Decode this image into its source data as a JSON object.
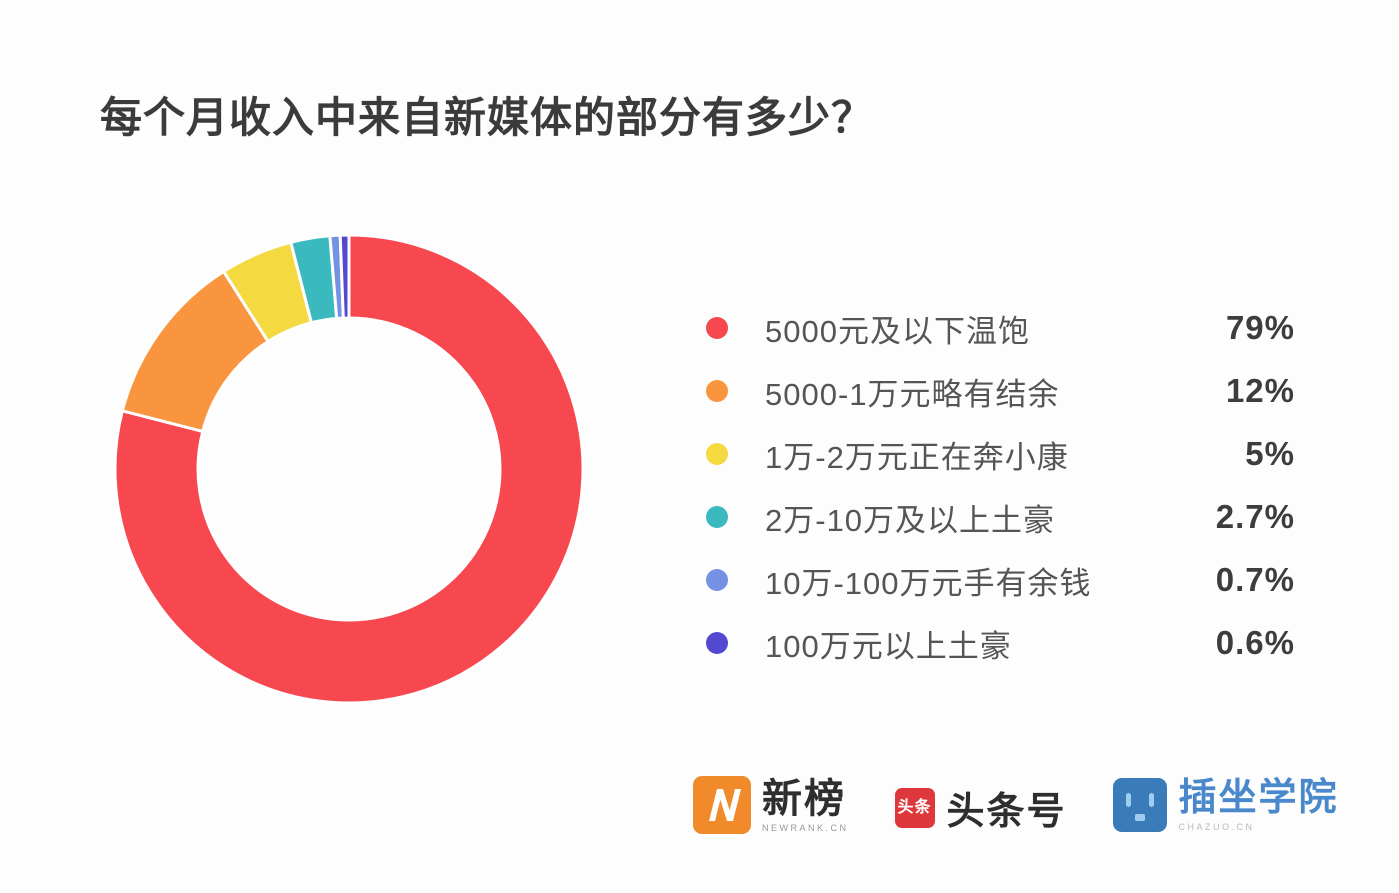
{
  "title": "每个月收入中来自新媒体的部分有多少？",
  "chart_data": {
    "type": "pie",
    "variant": "donut",
    "title": "每个月收入中来自新媒体的部分有多少？",
    "start_angle_deg": 0,
    "direction": "clockwise",
    "inner_radius_ratio": 0.645,
    "legend_position": "right",
    "slice_gap_color": "#ffffff",
    "series": [
      {
        "label": "5000元及以下温饱",
        "value": 79,
        "display": "79%",
        "color": "#f7474f"
      },
      {
        "label": "5000-1万元略有结余",
        "value": 12,
        "display": "12%",
        "color": "#f9953e"
      },
      {
        "label": "1万-2万元正在奔小康",
        "value": 5,
        "display": "5%",
        "color": "#f5d941"
      },
      {
        "label": "2万-10万及以上土豪",
        "value": 2.7,
        "display": "2.7%",
        "color": "#3ababf"
      },
      {
        "label": "10万-100万元手有余钱",
        "value": 0.7,
        "display": "0.7%",
        "color": "#7591e3"
      },
      {
        "label": "100万元以上土豪",
        "value": 0.6,
        "display": "0.6%",
        "color": "#5349d1"
      }
    ]
  },
  "footer": {
    "logos": [
      {
        "name": "newrank",
        "text": "新榜",
        "subtext": "NEWRANK.CN",
        "badge_color": "#f08a2b"
      },
      {
        "name": "toutiao",
        "text": "头条号",
        "badge_label": "头条",
        "badge_color": "#de383c"
      },
      {
        "name": "chazuo",
        "text": "插坐学院",
        "subtext": "CHAZUO.CN",
        "badge_color": "#3a7cba"
      }
    ]
  }
}
